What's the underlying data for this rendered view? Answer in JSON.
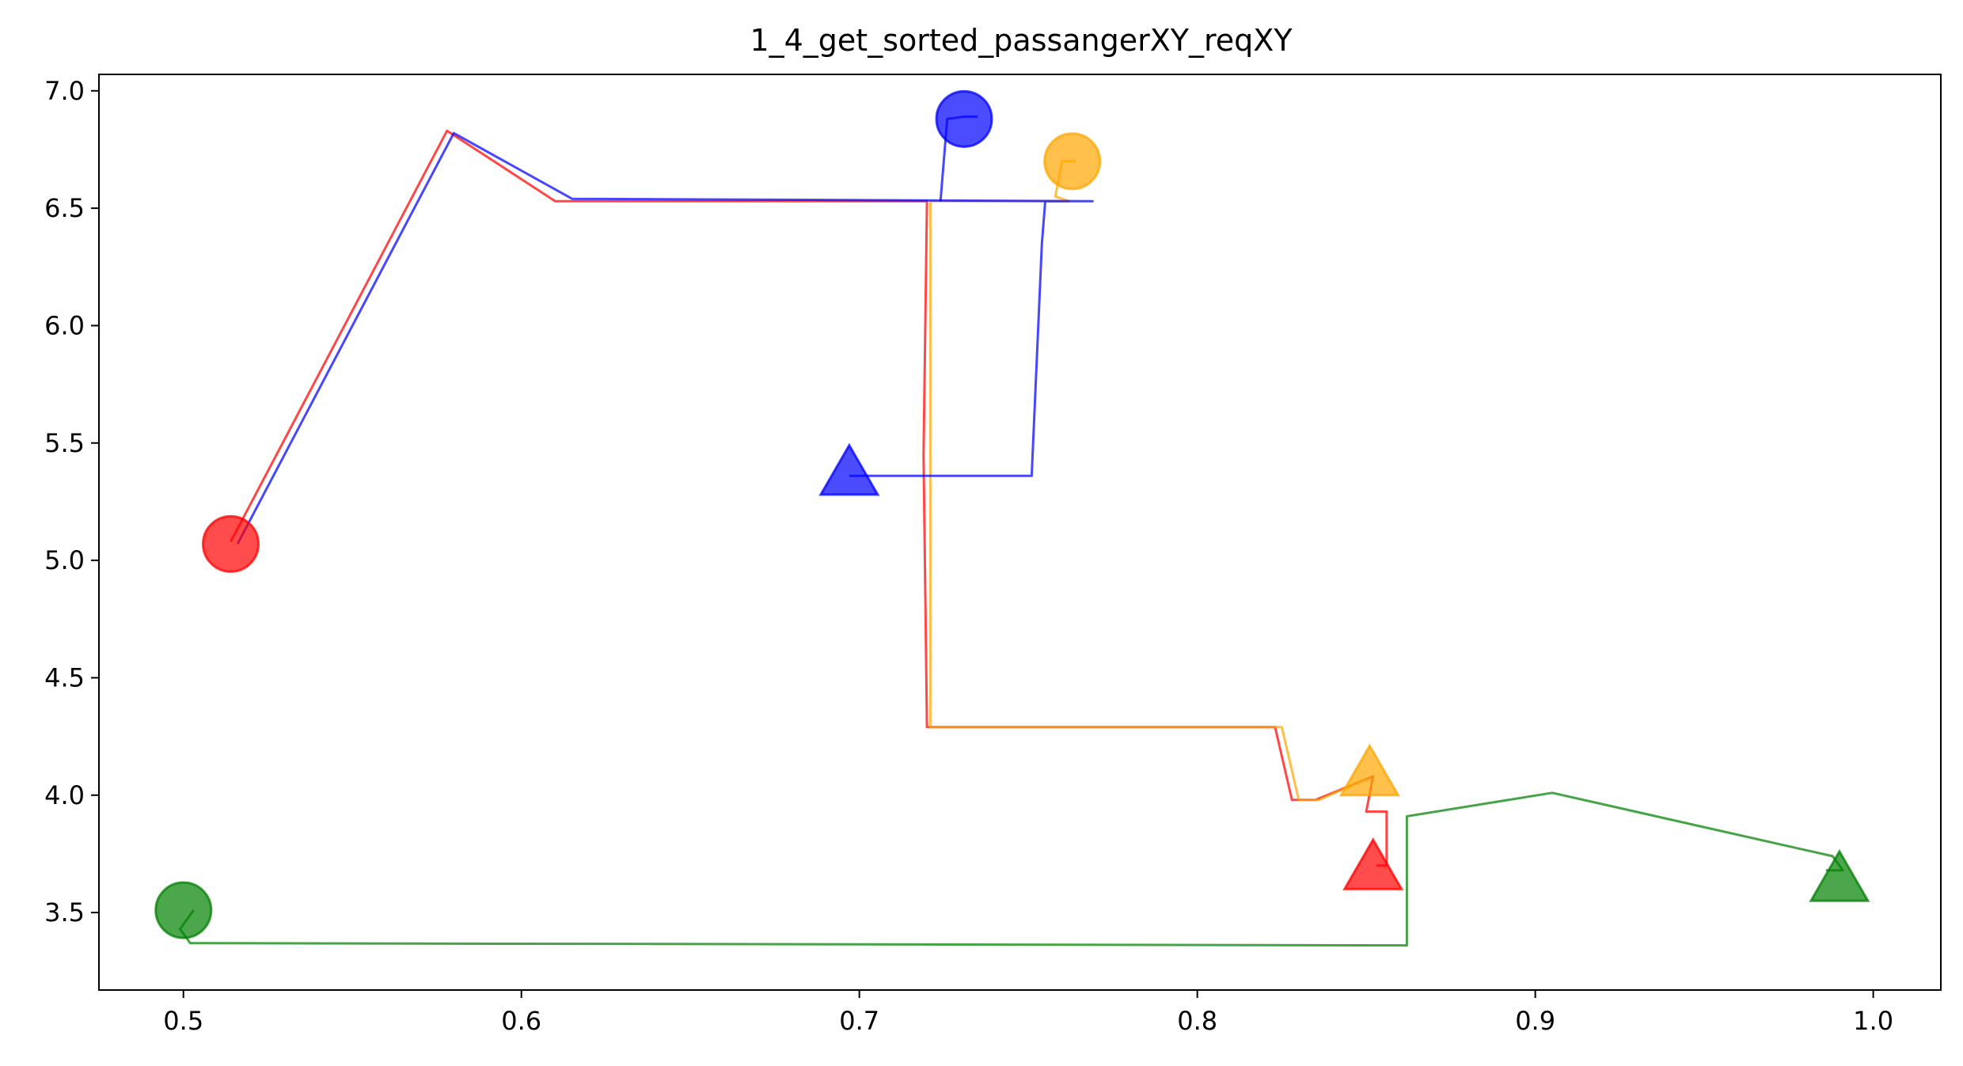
{
  "chart_data": {
    "type": "line",
    "title": "1_4_get_sorted_passangerXY_reqXY",
    "xlabel": "",
    "ylabel": "",
    "xlim": [
      0.475,
      1.02
    ],
    "ylim": [
      3.17,
      7.07
    ],
    "xticks": [
      0.5,
      0.6,
      0.7,
      0.8,
      0.9,
      1.0
    ],
    "xtick_labels": [
      "0.5",
      "0.6",
      "0.7",
      "0.8",
      "0.9",
      "1.0"
    ],
    "yticks": [
      3.5,
      4.0,
      4.5,
      5.0,
      5.5,
      6.0,
      6.5,
      7.0
    ],
    "ytick_labels": [
      "3.5",
      "4.0",
      "4.5",
      "5.0",
      "5.5",
      "6.0",
      "6.5",
      "7.0"
    ],
    "grid": false,
    "series": [
      {
        "color": "#ff0000",
        "route": [
          [
            0.514,
            5.08
          ],
          [
            0.578,
            6.83
          ],
          [
            0.61,
            6.53
          ],
          [
            0.72,
            6.53
          ],
          [
            0.719,
            5.45
          ],
          [
            0.72,
            4.29
          ],
          [
            0.823,
            4.29
          ],
          [
            0.828,
            3.98
          ],
          [
            0.835,
            3.98
          ],
          [
            0.852,
            4.08
          ],
          [
            0.85,
            3.93
          ],
          [
            0.856,
            3.93
          ],
          [
            0.856,
            3.7
          ],
          [
            0.853,
            3.7
          ]
        ],
        "pickup": [
          0.514,
          5.07
        ],
        "dropoff": [
          0.852,
          3.68
        ]
      },
      {
        "color": "#ffa500",
        "route": [
          [
            0.764,
            6.7
          ],
          [
            0.76,
            6.7
          ],
          [
            0.758,
            6.55
          ],
          [
            0.762,
            6.53
          ],
          [
            0.721,
            6.53
          ],
          [
            0.721,
            4.29
          ],
          [
            0.825,
            4.29
          ],
          [
            0.83,
            3.98
          ],
          [
            0.836,
            3.98
          ],
          [
            0.85,
            4.07
          ]
        ],
        "pickup": [
          0.763,
          6.7
        ],
        "dropoff": [
          0.851,
          4.08
        ]
      },
      {
        "color": "#0000ff",
        "route": [
          [
            0.516,
            5.07
          ],
          [
            0.58,
            6.82
          ],
          [
            0.615,
            6.54
          ],
          [
            0.769,
            6.53
          ],
          [
            0.762,
            6.53
          ],
          [
            0.755,
            6.53
          ],
          [
            0.754,
            6.35
          ],
          [
            0.751,
            5.36
          ],
          [
            0.697,
            5.36
          ]
        ],
        "pickup": [
          0.731,
          6.88
        ],
        "dropoff": [
          0.697,
          5.36
        ],
        "pickup_hook": [
          [
            0.735,
            6.89
          ],
          [
            0.731,
            6.89
          ],
          [
            0.726,
            6.88
          ],
          [
            0.724,
            6.53
          ]
        ]
      },
      {
        "color": "#008000",
        "route": [
          [
            0.503,
            3.51
          ],
          [
            0.499,
            3.43
          ],
          [
            0.502,
            3.37
          ],
          [
            0.862,
            3.36
          ],
          [
            0.862,
            3.91
          ],
          [
            0.905,
            4.01
          ],
          [
            0.988,
            3.74
          ],
          [
            0.991,
            3.68
          ],
          [
            0.986,
            3.68
          ]
        ],
        "pickup": [
          0.5,
          3.51
        ],
        "dropoff": [
          0.99,
          3.63
        ]
      }
    ]
  }
}
